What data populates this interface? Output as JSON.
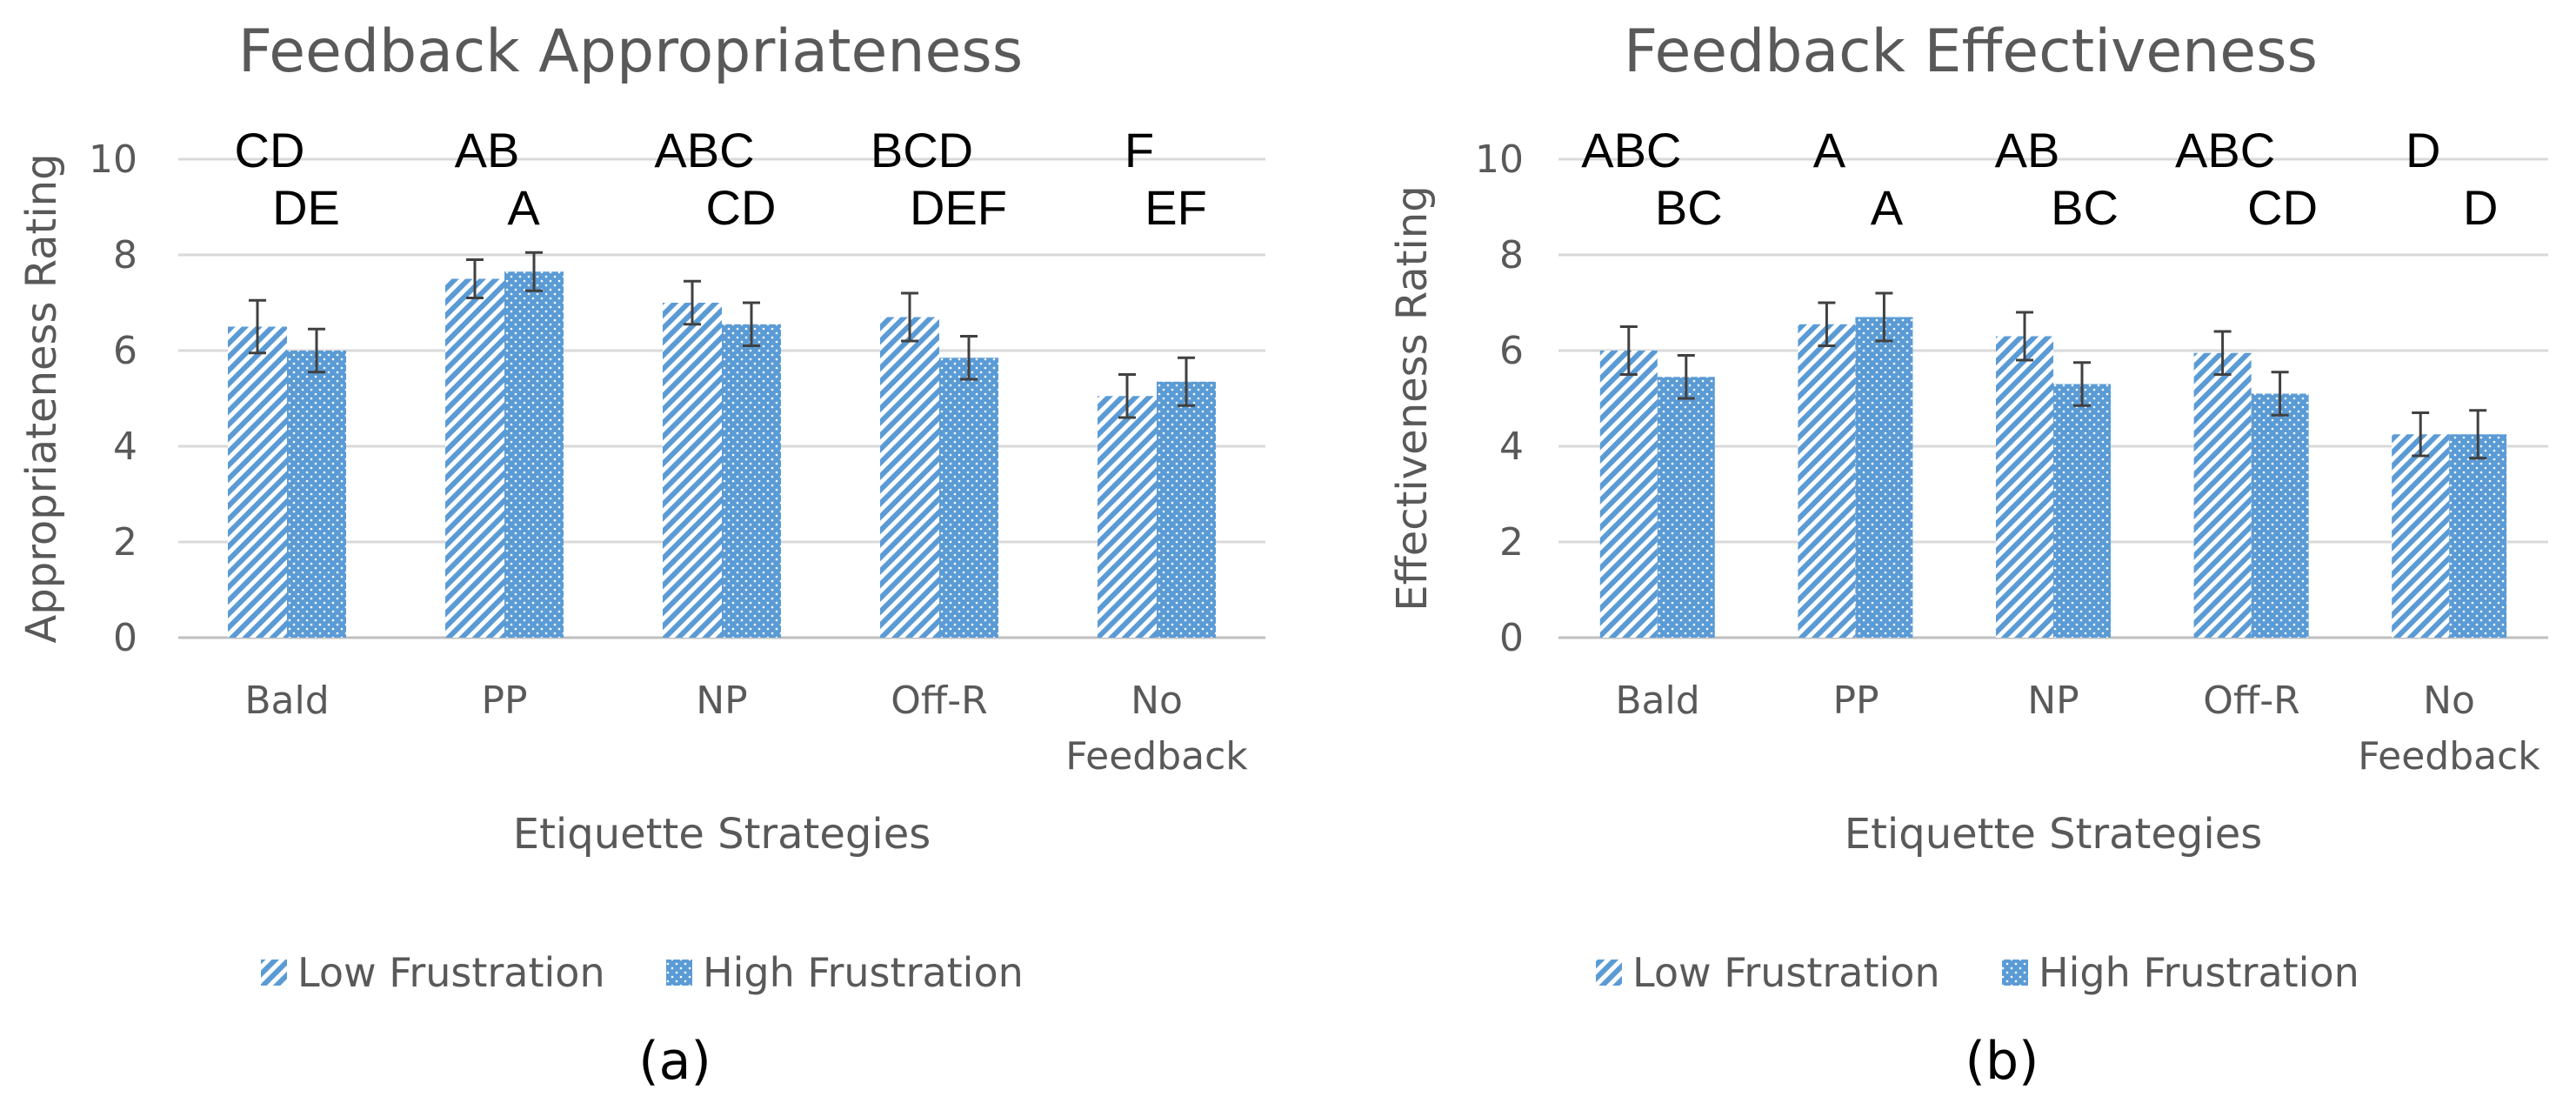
{
  "chart_data": [
    {
      "type": "bar",
      "title": "Feedback Appropriateness",
      "xlabel": "Etiquette Strategies",
      "ylabel": "Appropriateness Rating",
      "ylim": [
        0,
        10
      ],
      "yticks": [
        "0",
        "2",
        "4",
        "6",
        "8",
        "10"
      ],
      "categories": [
        [
          "Bald"
        ],
        [
          "PP"
        ],
        [
          "NP"
        ],
        [
          "Off-R"
        ],
        [
          "No",
          "Feedback"
        ]
      ],
      "series": [
        {
          "name": "Low Frustration",
          "values": [
            6.5,
            7.5,
            7.0,
            6.7,
            5.05
          ],
          "errors": [
            0.55,
            0.4,
            0.45,
            0.5,
            0.45
          ]
        },
        {
          "name": "High Frustration",
          "values": [
            6.0,
            7.65,
            6.55,
            5.85,
            5.35
          ],
          "errors": [
            0.45,
            0.4,
            0.45,
            0.45,
            0.5
          ]
        }
      ],
      "letters_low": [
        "CD",
        "AB",
        "ABC",
        "BCD",
        "F"
      ],
      "letters_high": [
        "DE",
        "A",
        "CD",
        "DEF",
        "EF"
      ],
      "legend_position": "bottom",
      "grid": true,
      "caption": "(a)"
    },
    {
      "type": "bar",
      "title": "Feedback Effectiveness",
      "xlabel": "Etiquette Strategies",
      "ylabel": "Effectiveness Rating",
      "ylim": [
        0,
        10
      ],
      "yticks": [
        "0",
        "2",
        "4",
        "6",
        "8",
        "10"
      ],
      "categories": [
        [
          "Bald"
        ],
        [
          "PP"
        ],
        [
          "NP"
        ],
        [
          "Off-R"
        ],
        [
          "No",
          "Feedback"
        ]
      ],
      "series": [
        {
          "name": "Low Frustration",
          "values": [
            6.0,
            6.55,
            6.3,
            5.95,
            4.25
          ],
          "errors": [
            0.5,
            0.45,
            0.5,
            0.45,
            0.45
          ]
        },
        {
          "name": "High Frustration",
          "values": [
            5.45,
            6.7,
            5.3,
            5.1,
            4.25
          ],
          "errors": [
            0.45,
            0.5,
            0.45,
            0.45,
            0.5
          ]
        }
      ],
      "letters_low": [
        "ABC",
        "A",
        "AB",
        "ABC",
        "D"
      ],
      "letters_high": [
        "BC",
        "A",
        "BC",
        "CD",
        "D"
      ],
      "legend_position": "bottom",
      "grid": true,
      "caption": "(b)"
    }
  ],
  "colors": {
    "bar": "#5b9bd5",
    "grid": "#d9d9d9",
    "axis": "#bfbfbf",
    "error": "#404040",
    "text": "#595959"
  }
}
